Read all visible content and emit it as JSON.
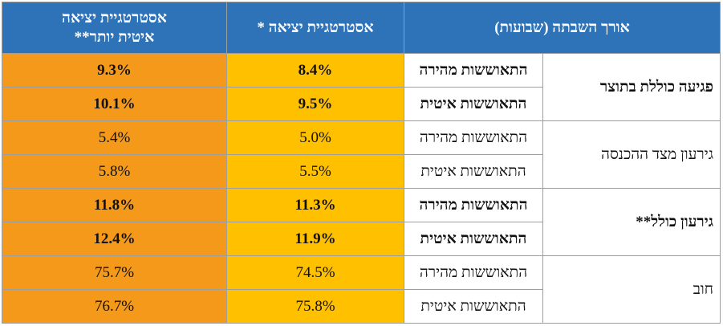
{
  "header": {
    "col_period": "אורך השבתה (שבועות)",
    "col_strategy1": "אסטרטגיית יציאה *",
    "col_strategy2_line1": "אסטרטגיית יציאה",
    "col_strategy2_line2": "איטית יותר**"
  },
  "groups": [
    {
      "label": "פגיעה כוללת בתוצר",
      "bold": true,
      "rows": [
        {
          "scenario": "התאוששות מהירה",
          "s1": "8.4%",
          "s2": "9.3%"
        },
        {
          "scenario": "התאוששות איטית",
          "s1": "9.5%",
          "s2": "10.1%"
        }
      ]
    },
    {
      "label": "גירעון מצד ההכנסה",
      "bold": false,
      "rows": [
        {
          "scenario": "התאוששות מהירה",
          "s1": "5.0%",
          "s2": "5.4%"
        },
        {
          "scenario": "התאוששות איטית",
          "s1": "5.5%",
          "s2": "5.8%"
        }
      ]
    },
    {
      "label": "גירעון כולל**",
      "bold": true,
      "rows": [
        {
          "scenario": "התאוששות מהירה",
          "s1": "11.3%",
          "s2": "11.8%"
        },
        {
          "scenario": "התאוששות איטית",
          "s1": "11.9%",
          "s2": "12.4%"
        }
      ]
    },
    {
      "label": "חוב",
      "bold": false,
      "rows": [
        {
          "scenario": "התאוששות מהירה",
          "s1": "74.5%",
          "s2": "75.7%"
        },
        {
          "scenario": "התאוששות איטית",
          "s1": "75.8%",
          "s2": "76.7%"
        }
      ]
    }
  ]
}
